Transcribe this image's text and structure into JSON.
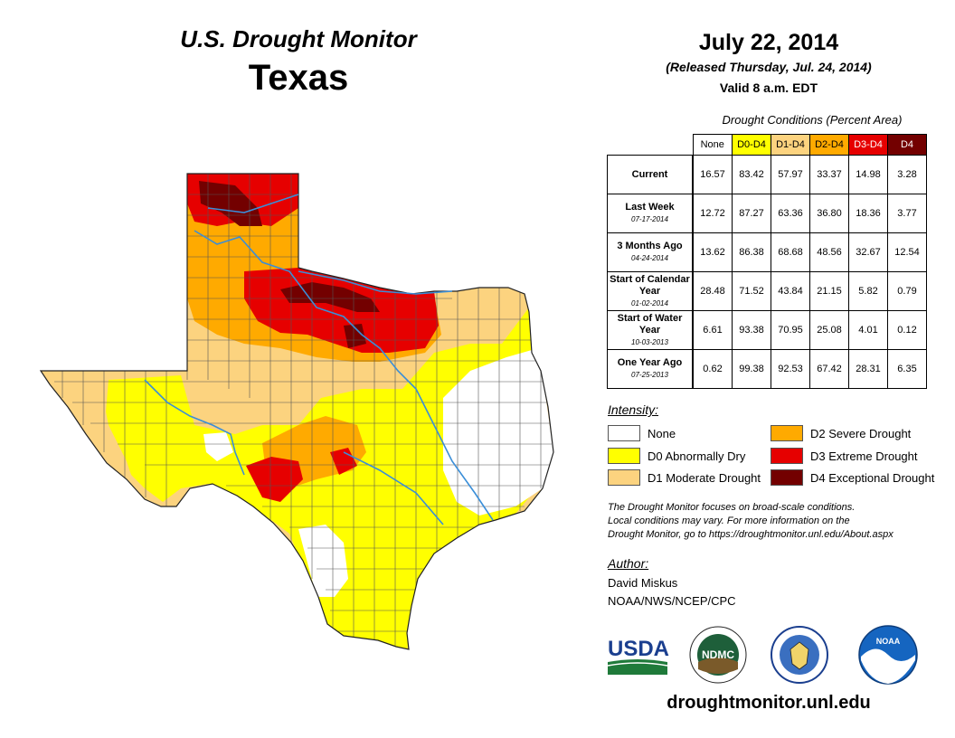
{
  "header": {
    "monitor_title": "U.S. Drought Monitor",
    "state": "Texas",
    "date": "July 22, 2014",
    "released": "(Released Thursday, Jul. 24, 2014)",
    "valid": "Valid 8 a.m. EDT"
  },
  "conditions": {
    "title": "Drought Conditions (Percent Area)",
    "columns": [
      {
        "label": "None",
        "color": "#ffffff",
        "text_color": "#000000"
      },
      {
        "label": "D0-D4",
        "color": "#ffff00",
        "text_color": "#000000"
      },
      {
        "label": "D1-D4",
        "color": "#fcd37f",
        "text_color": "#000000"
      },
      {
        "label": "D2-D4",
        "color": "#ffaa00",
        "text_color": "#000000"
      },
      {
        "label": "D3-D4",
        "color": "#e60000",
        "text_color": "#ffffff"
      },
      {
        "label": "D4",
        "color": "#730000",
        "text_color": "#ffffff"
      }
    ],
    "rows": [
      {
        "label": "Current",
        "date": "",
        "values": [
          "16.57",
          "83.42",
          "57.97",
          "33.37",
          "14.98",
          "3.28"
        ]
      },
      {
        "label": "Last Week",
        "date": "07-17-2014",
        "values": [
          "12.72",
          "87.27",
          "63.36",
          "36.80",
          "18.36",
          "3.77"
        ]
      },
      {
        "label": "3 Months Ago",
        "date": "04-24-2014",
        "values": [
          "13.62",
          "86.38",
          "68.68",
          "48.56",
          "32.67",
          "12.54"
        ]
      },
      {
        "label": "Start of Calendar Year",
        "date": "01-02-2014",
        "values": [
          "28.48",
          "71.52",
          "43.84",
          "21.15",
          "5.82",
          "0.79"
        ]
      },
      {
        "label": "Start of Water Year",
        "date": "10-03-2013",
        "values": [
          "6.61",
          "93.38",
          "70.95",
          "25.08",
          "4.01",
          "0.12"
        ]
      },
      {
        "label": "One Year Ago",
        "date": "07-25-2013",
        "values": [
          "0.62",
          "99.38",
          "92.53",
          "67.42",
          "28.31",
          "6.35"
        ]
      }
    ]
  },
  "legend": {
    "title": "Intensity:",
    "items": [
      {
        "label": "None",
        "color": "#ffffff"
      },
      {
        "label": "D0 Abnormally Dry",
        "color": "#ffff00"
      },
      {
        "label": "D1 Moderate Drought",
        "color": "#fcd37f"
      },
      {
        "label": "D2 Severe Drought",
        "color": "#ffaa00"
      },
      {
        "label": "D3 Extreme Drought",
        "color": "#e60000"
      },
      {
        "label": "D4 Exceptional Drought",
        "color": "#730000"
      }
    ]
  },
  "note": {
    "line1": "The Drought Monitor focuses on broad-scale conditions.",
    "line2": "Local conditions may vary. For more information on the",
    "line3": "Drought Monitor, go to https://droughtmonitor.unl.edu/About.aspx"
  },
  "author": {
    "title": "Author:",
    "name": "David Miskus",
    "org": "NOAA/NWS/NCEP/CPC"
  },
  "logos": {
    "usda": "USDA",
    "ndmc": "NDMC",
    "noaa": "NOAA"
  },
  "footer": {
    "url": "droughtmonitor.unl.edu"
  },
  "map_colors": {
    "river": "#3a8ed8",
    "county_line": "#555555"
  }
}
